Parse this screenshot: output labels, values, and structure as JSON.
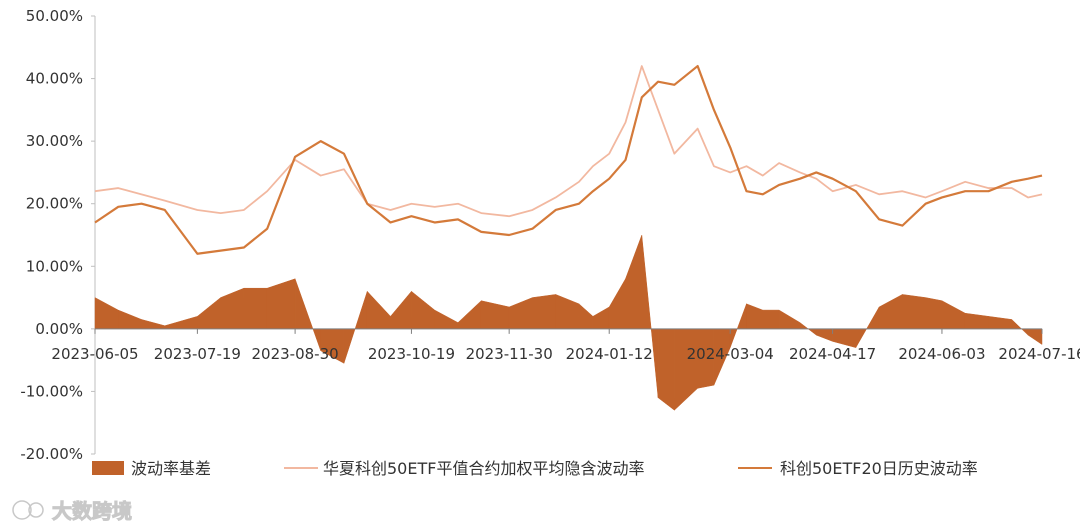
{
  "chart_data": {
    "type": "area+line",
    "title": "",
    "xlabel": "",
    "ylabel": "",
    "ylim": [
      -0.2,
      0.5
    ],
    "y_ticks": [
      "50.00%",
      "40.00%",
      "30.00%",
      "20.00%",
      "10.00%",
      "0.00%",
      "-10.00%",
      "-20.00%"
    ],
    "x_ticks": [
      "2023-06-05",
      "2023-07-19",
      "2023-08-30",
      "2023-10-19",
      "2023-11-30",
      "2024-01-12",
      "2024-03-04",
      "2024-04-17",
      "2024-06-03",
      "2024-07-16"
    ],
    "x_range": [
      "2023-06-05",
      "2024-07-16"
    ],
    "legend_placement": "bottom",
    "series": [
      {
        "name": "波动率基差",
        "kind": "area",
        "color": "#c0622a",
        "x": [
          "2023-06-05",
          "2023-06-15",
          "2023-06-25",
          "2023-07-05",
          "2023-07-19",
          "2023-07-29",
          "2023-08-08",
          "2023-08-18",
          "2023-08-30",
          "2023-09-10",
          "2023-09-20",
          "2023-09-30",
          "2023-10-10",
          "2023-10-19",
          "2023-10-29",
          "2023-11-08",
          "2023-11-18",
          "2023-11-30",
          "2023-12-10",
          "2023-12-20",
          "2023-12-30",
          "2024-01-05",
          "2024-01-12",
          "2024-01-19",
          "2024-01-26",
          "2024-02-02",
          "2024-02-09",
          "2024-02-19",
          "2024-02-26",
          "2024-03-04",
          "2024-03-11",
          "2024-03-18",
          "2024-03-25",
          "2024-04-03",
          "2024-04-10",
          "2024-04-17",
          "2024-04-27",
          "2024-05-07",
          "2024-05-17",
          "2024-05-27",
          "2024-06-03",
          "2024-06-13",
          "2024-06-23",
          "2024-07-03",
          "2024-07-10",
          "2024-07-16"
        ],
        "values": [
          0.05,
          0.03,
          0.015,
          0.005,
          0.02,
          0.05,
          0.065,
          0.065,
          0.08,
          -0.035,
          -0.055,
          0.06,
          0.02,
          0.06,
          0.03,
          0.01,
          0.045,
          0.035,
          0.05,
          0.055,
          0.04,
          0.02,
          0.035,
          0.08,
          0.15,
          -0.11,
          -0.13,
          -0.095,
          -0.09,
          -0.03,
          0.04,
          0.03,
          0.03,
          0.01,
          -0.01,
          -0.02,
          -0.03,
          0.035,
          0.055,
          0.05,
          0.045,
          0.025,
          0.02,
          0.015,
          -0.01,
          -0.025
        ]
      },
      {
        "name": "华夏科创50ETF平值合约加权平均隐含波动率",
        "kind": "line",
        "color": "#f2b8a0",
        "x": [
          "2023-06-05",
          "2023-06-15",
          "2023-06-25",
          "2023-07-05",
          "2023-07-19",
          "2023-07-29",
          "2023-08-08",
          "2023-08-18",
          "2023-08-30",
          "2023-09-10",
          "2023-09-20",
          "2023-09-30",
          "2023-10-10",
          "2023-10-19",
          "2023-10-29",
          "2023-11-08",
          "2023-11-18",
          "2023-11-30",
          "2023-12-10",
          "2023-12-20",
          "2023-12-30",
          "2024-01-05",
          "2024-01-12",
          "2024-01-19",
          "2024-01-26",
          "2024-02-02",
          "2024-02-09",
          "2024-02-19",
          "2024-02-26",
          "2024-03-04",
          "2024-03-11",
          "2024-03-18",
          "2024-03-25",
          "2024-04-03",
          "2024-04-10",
          "2024-04-17",
          "2024-04-27",
          "2024-05-07",
          "2024-05-17",
          "2024-05-27",
          "2024-06-03",
          "2024-06-13",
          "2024-06-23",
          "2024-07-03",
          "2024-07-10",
          "2024-07-16"
        ],
        "values": [
          0.22,
          0.225,
          0.215,
          0.205,
          0.19,
          0.185,
          0.19,
          0.22,
          0.27,
          0.245,
          0.255,
          0.2,
          0.19,
          0.2,
          0.195,
          0.2,
          0.185,
          0.18,
          0.19,
          0.21,
          0.235,
          0.26,
          0.28,
          0.33,
          0.42,
          0.35,
          0.28,
          0.32,
          0.26,
          0.25,
          0.26,
          0.245,
          0.265,
          0.25,
          0.24,
          0.22,
          0.23,
          0.215,
          0.22,
          0.21,
          0.22,
          0.235,
          0.225,
          0.225,
          0.21,
          0.215
        ]
      },
      {
        "name": "科创50ETF20日历史波动率",
        "kind": "line",
        "color": "#d47a3a",
        "x": [
          "2023-06-05",
          "2023-06-15",
          "2023-06-25",
          "2023-07-05",
          "2023-07-19",
          "2023-07-29",
          "2023-08-08",
          "2023-08-18",
          "2023-08-30",
          "2023-09-10",
          "2023-09-20",
          "2023-09-30",
          "2023-10-10",
          "2023-10-19",
          "2023-10-29",
          "2023-11-08",
          "2023-11-18",
          "2023-11-30",
          "2023-12-10",
          "2023-12-20",
          "2023-12-30",
          "2024-01-05",
          "2024-01-12",
          "2024-01-19",
          "2024-01-26",
          "2024-02-02",
          "2024-02-09",
          "2024-02-19",
          "2024-02-26",
          "2024-03-04",
          "2024-03-11",
          "2024-03-18",
          "2024-03-25",
          "2024-04-03",
          "2024-04-10",
          "2024-04-17",
          "2024-04-27",
          "2024-05-07",
          "2024-05-17",
          "2024-05-27",
          "2024-06-03",
          "2024-06-13",
          "2024-06-23",
          "2024-07-03",
          "2024-07-10",
          "2024-07-16"
        ],
        "values": [
          0.17,
          0.195,
          0.2,
          0.19,
          0.12,
          0.125,
          0.13,
          0.16,
          0.275,
          0.3,
          0.28,
          0.2,
          0.17,
          0.18,
          0.17,
          0.175,
          0.155,
          0.15,
          0.16,
          0.19,
          0.2,
          0.22,
          0.24,
          0.27,
          0.37,
          0.395,
          0.39,
          0.42,
          0.35,
          0.29,
          0.22,
          0.215,
          0.23,
          0.24,
          0.25,
          0.24,
          0.22,
          0.175,
          0.165,
          0.2,
          0.21,
          0.22,
          0.22,
          0.235,
          0.24,
          0.245
        ]
      }
    ]
  },
  "watermark": {
    "text": "大数跨境"
  }
}
